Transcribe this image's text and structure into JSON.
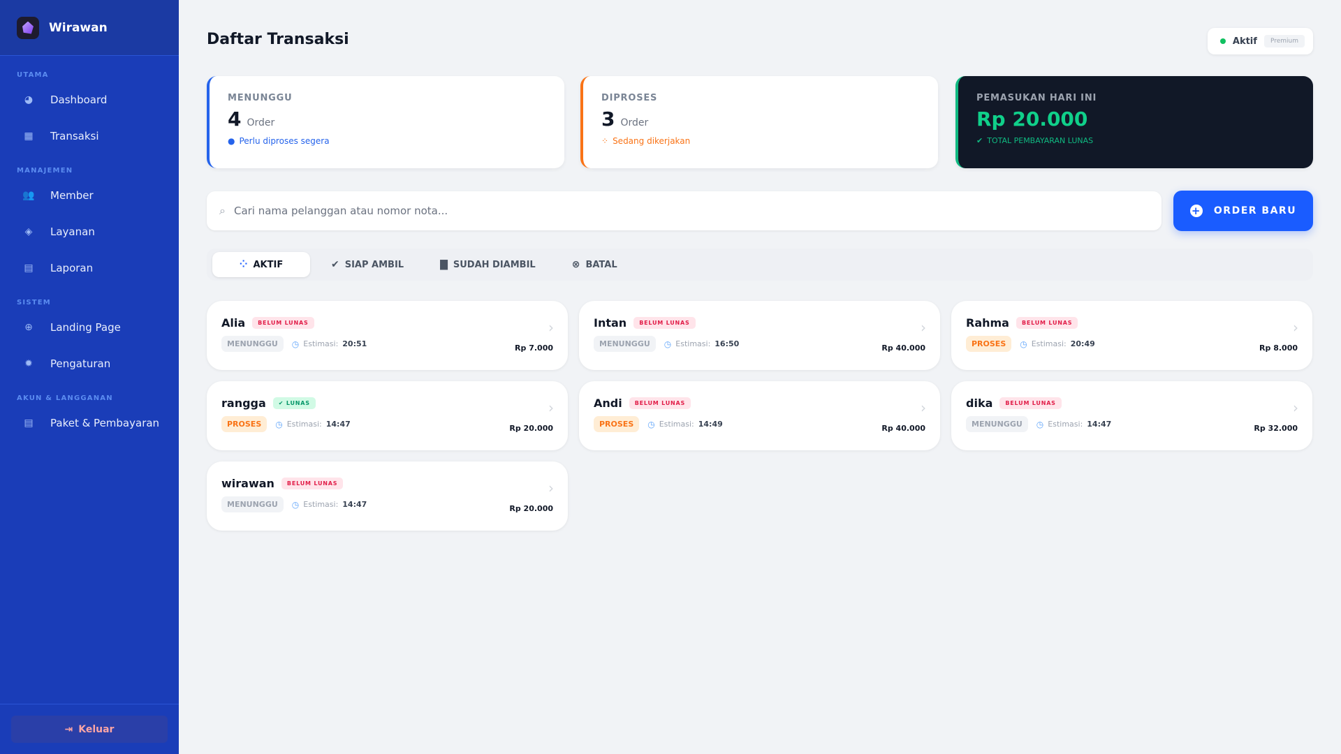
{
  "sidebar": {
    "brand": "Wirawan",
    "sections": [
      {
        "label": "UTAMA",
        "items": [
          {
            "label": "Dashboard",
            "icon": "chart-pie-icon"
          },
          {
            "label": "Transaksi",
            "icon": "cash-register-icon"
          }
        ]
      },
      {
        "label": "MANAJEMEN",
        "items": [
          {
            "label": "Member",
            "icon": "users-icon"
          },
          {
            "label": "Layanan",
            "icon": "tags-icon"
          },
          {
            "label": "Laporan",
            "icon": "file-invoice-icon"
          }
        ]
      },
      {
        "label": "SISTEM",
        "items": [
          {
            "label": "Landing Page",
            "icon": "globe-icon"
          },
          {
            "label": "Pengaturan",
            "icon": "gear-icon"
          }
        ]
      },
      {
        "label": "AKUN & LANGGANAN",
        "items": [
          {
            "label": "Paket & Pembayaran",
            "icon": "file-invoice-icon"
          }
        ]
      }
    ],
    "logout": "Keluar"
  },
  "header": {
    "title": "Daftar Transaksi",
    "status": "Aktif",
    "plan": "Premium"
  },
  "stats": [
    {
      "label": "MENUNGGU",
      "value": "4",
      "unit": "Order",
      "note": "Perlu diproses segera",
      "color": "#2563eb"
    },
    {
      "label": "DIPROSES",
      "value": "3",
      "unit": "Order",
      "note": "Sedang dikerjakan",
      "color": "#f97316"
    },
    {
      "label": "PEMASUKAN HARI INI",
      "value": "Rp 20.000",
      "note": "TOTAL PEMBAYARAN LUNAS",
      "color": "#10b981"
    }
  ],
  "search": {
    "placeholder": "Cari nama pelanggan atau nomor nota..."
  },
  "new_order": "ORDER BARU",
  "tabs": [
    {
      "label": "AKTIF",
      "active": true
    },
    {
      "label": "SIAP AMBIL"
    },
    {
      "label": "SUDAH DIAMBIL"
    },
    {
      "label": "BATAL"
    }
  ],
  "estimate_label": "Estimasi:",
  "orders": [
    {
      "name": "Alia",
      "payment": "BELUM LUNAS",
      "status": "MENUNGGU",
      "time": "20:51",
      "price": "Rp 7.000"
    },
    {
      "name": "Intan",
      "payment": "BELUM LUNAS",
      "status": "MENUNGGU",
      "time": "16:50",
      "price": "Rp 40.000"
    },
    {
      "name": "Rahma",
      "payment": "BELUM LUNAS",
      "status": "PROSES",
      "time": "20:49",
      "price": "Rp 8.000"
    },
    {
      "name": "rangga",
      "payment": "LUNAS",
      "status": "PROSES",
      "time": "14:47",
      "price": "Rp 20.000"
    },
    {
      "name": "Andi",
      "payment": "BELUM LUNAS",
      "status": "PROSES",
      "time": "14:49",
      "price": "Rp 40.000"
    },
    {
      "name": "dika",
      "payment": "BELUM LUNAS",
      "status": "MENUNGGU",
      "time": "14:47",
      "price": "Rp 32.000"
    },
    {
      "name": "wirawan",
      "payment": "BELUM LUNAS",
      "status": "MENUNGGU",
      "time": "14:47",
      "price": "Rp 20.000"
    }
  ]
}
